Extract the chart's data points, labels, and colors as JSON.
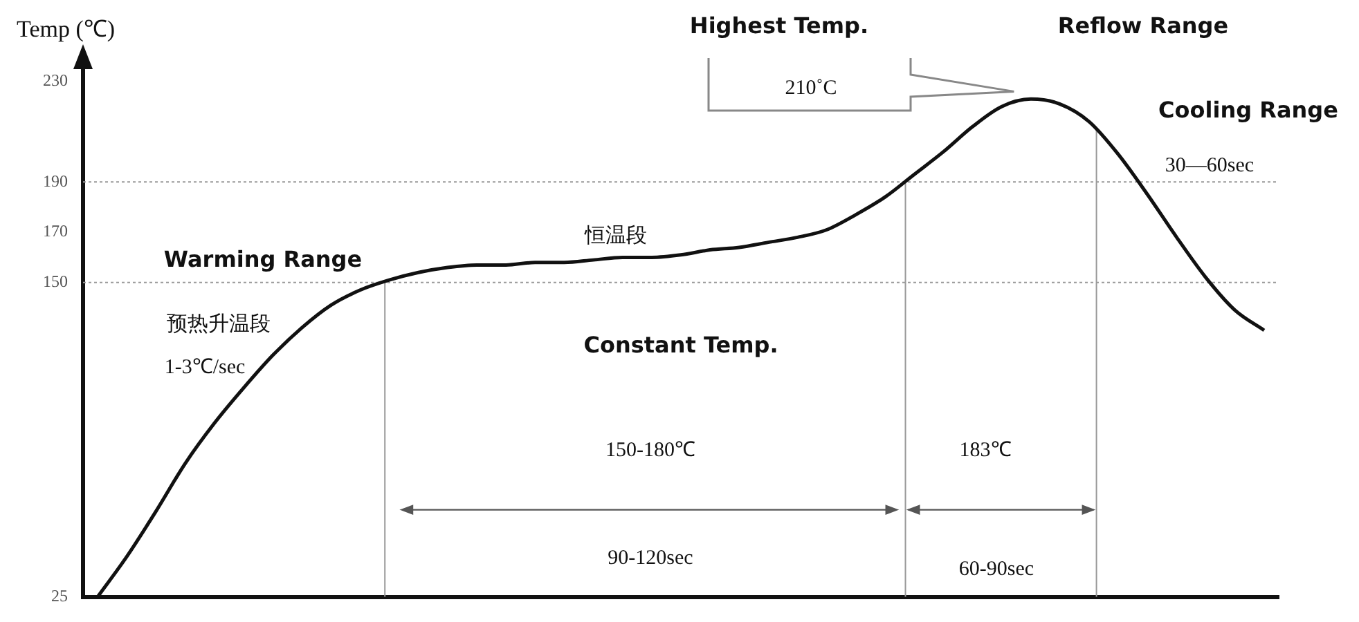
{
  "chart_data": {
    "type": "line",
    "ylabel": "Temp (℃)",
    "categories": [
      null,
      null,
      null,
      null,
      null,
      null,
      null,
      null,
      null,
      null,
      null,
      null,
      null,
      null,
      null,
      null,
      null,
      null,
      null,
      null,
      null,
      null,
      null,
      null,
      null,
      null,
      null,
      null,
      null,
      null,
      null,
      null,
      null,
      null,
      null,
      null,
      null,
      null,
      null,
      null,
      null
    ],
    "series": [
      {
        "color": "#111111",
        "values": [
          25,
          41,
          59,
          78,
          94,
          108,
          121,
          132,
          141,
          147,
          151,
          154,
          156,
          157,
          157,
          158,
          158,
          159,
          160,
          160,
          161,
          163,
          164,
          166,
          168,
          171,
          177,
          184,
          193,
          202,
          212,
          220,
          223,
          221,
          214,
          201,
          185,
          168,
          152,
          139,
          131
        ]
      }
    ],
    "ylim": [
      25,
      236
    ],
    "yticks": [
      25,
      150,
      170,
      190,
      230
    ],
    "tick_labels": "y",
    "grid": false,
    "legend": false,
    "marker": "none",
    "line_style": "solid",
    "ref_lines": [
      {
        "axis": "y",
        "value": 150,
        "color": "#999999",
        "line_style": "dotted"
      },
      {
        "axis": "y",
        "value": 190,
        "color": "#999999",
        "line_style": "dotted"
      }
    ],
    "annotations": [
      "Highest Temp.",
      "Reflow Range",
      "210˚C",
      "Cooling Range",
      "30—60sec",
      "恒温段",
      "Warming Range",
      "预热升温段",
      "1-3℃/sec",
      "Constant Temp.",
      "150-180℃",
      "183℃",
      "90-120sec",
      "60-90sec"
    ]
  }
}
